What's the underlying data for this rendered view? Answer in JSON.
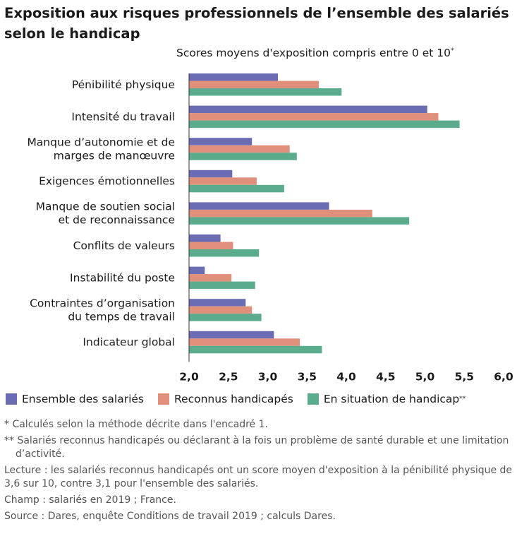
{
  "title": "Exposition aux risques professionnels de l’ensemble des salariés selon le handicap",
  "chart_data": {
    "type": "bar",
    "orientation": "horizontal",
    "subtitle": "Scores moyens d'exposition compris entre 0 et 10",
    "subtitle_mark": "*",
    "categories": [
      [
        "Pénibilité physique"
      ],
      [
        "Intensité du travail"
      ],
      [
        "Manque d’autonomie et de",
        "marges de manœuvre"
      ],
      [
        "Exigences émotionnelles"
      ],
      [
        "Manque de soutien social",
        "et de reconnaissance"
      ],
      [
        "Conflits de valeurs"
      ],
      [
        "Instabilité du poste"
      ],
      [
        "Contraintes d’organisation",
        "du temps de travail"
      ],
      [
        "Indicateur global"
      ]
    ],
    "series": [
      {
        "name": "Ensemble des salariés",
        "name_mark": "",
        "color": "#6a6db3",
        "values": [
          3.13,
          5.03,
          2.8,
          2.55,
          3.78,
          2.4,
          2.2,
          2.72,
          3.08
        ]
      },
      {
        "name": "Reconnus handicapés",
        "name_mark": "",
        "color": "#e0907a",
        "values": [
          3.65,
          5.17,
          3.28,
          2.86,
          4.33,
          2.56,
          2.54,
          2.8,
          3.41
        ]
      },
      {
        "name": "En situation de handicap",
        "name_mark": "**",
        "color": "#5aac8c",
        "values": [
          3.94,
          5.44,
          3.37,
          3.21,
          4.8,
          2.89,
          2.84,
          2.92,
          3.69
        ]
      }
    ],
    "xlim": [
      2.0,
      6.0
    ],
    "ticks": [
      "2,0",
      "2,5",
      "3,0",
      "3,5",
      "4,0",
      "4,5",
      "5,0",
      "5,5",
      "6,0"
    ],
    "grid": false,
    "legend_position": "bottom"
  },
  "notes": {
    "note1": "* Calculés selon la méthode décrite dans l'encadré 1.",
    "note2": "** Salariés reconnus handicapés ou déclarant à la fois un problème de santé  durable et une limitation d’activité.",
    "lecture_label": "Lecture :",
    "lecture_text": " les salariés reconnus handicapés ont un score moyen d'exposition à la pénibilité physique de 3,6 sur 10, contre 3,1 pour l'ensemble des salariés.",
    "champ_label": "Champ :",
    "champ_text": " salariés en 2019 ; France.",
    "source_label": "Source :",
    "source_text": " Dares, enquête Conditions de travail 2019 ; calculs Dares."
  }
}
